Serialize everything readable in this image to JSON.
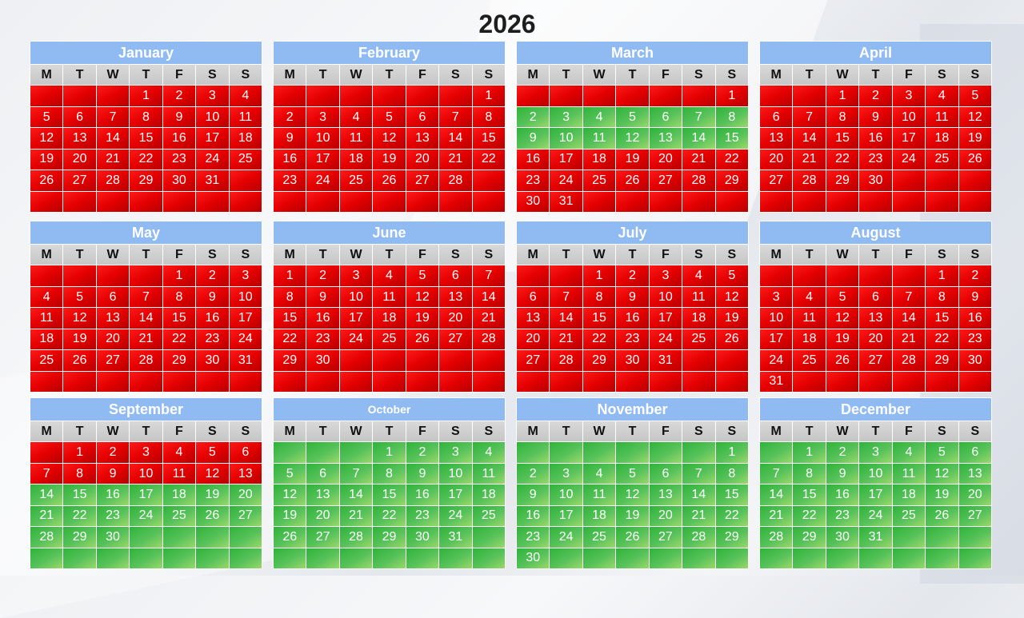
{
  "year": "2026",
  "weekday_headers": [
    "M",
    "T",
    "W",
    "T",
    "F",
    "S",
    "S"
  ],
  "colors": {
    "past": "#e00000",
    "current": "#4cbf50",
    "header": "#8fbaf2"
  },
  "months": [
    {
      "name": "January",
      "offset": 3,
      "days": 31,
      "green_from": 0,
      "green_to": 0
    },
    {
      "name": "February",
      "offset": 6,
      "days": 28,
      "green_from": 0,
      "green_to": 0
    },
    {
      "name": "March",
      "offset": 6,
      "days": 31,
      "green_from": 2,
      "green_to": 15
    },
    {
      "name": "April",
      "offset": 2,
      "days": 30,
      "green_from": 0,
      "green_to": 0
    },
    {
      "name": "May",
      "offset": 4,
      "days": 31,
      "green_from": 0,
      "green_to": 0
    },
    {
      "name": "June",
      "offset": 0,
      "days": 30,
      "green_from": 0,
      "green_to": 0
    },
    {
      "name": "July",
      "offset": 2,
      "days": 31,
      "green_from": 0,
      "green_to": 0
    },
    {
      "name": "August",
      "offset": 5,
      "days": 31,
      "green_from": 0,
      "green_to": 0
    },
    {
      "name": "September",
      "offset": 1,
      "days": 30,
      "green_from": 14,
      "green_to": 30
    },
    {
      "name": "October",
      "offset": 3,
      "days": 31,
      "green_from": 1,
      "green_to": 31
    },
    {
      "name": "November",
      "offset": 6,
      "days": 30,
      "green_from": 1,
      "green_to": 30
    },
    {
      "name": "December",
      "offset": 1,
      "days": 31,
      "green_from": 1,
      "green_to": 31
    }
  ]
}
